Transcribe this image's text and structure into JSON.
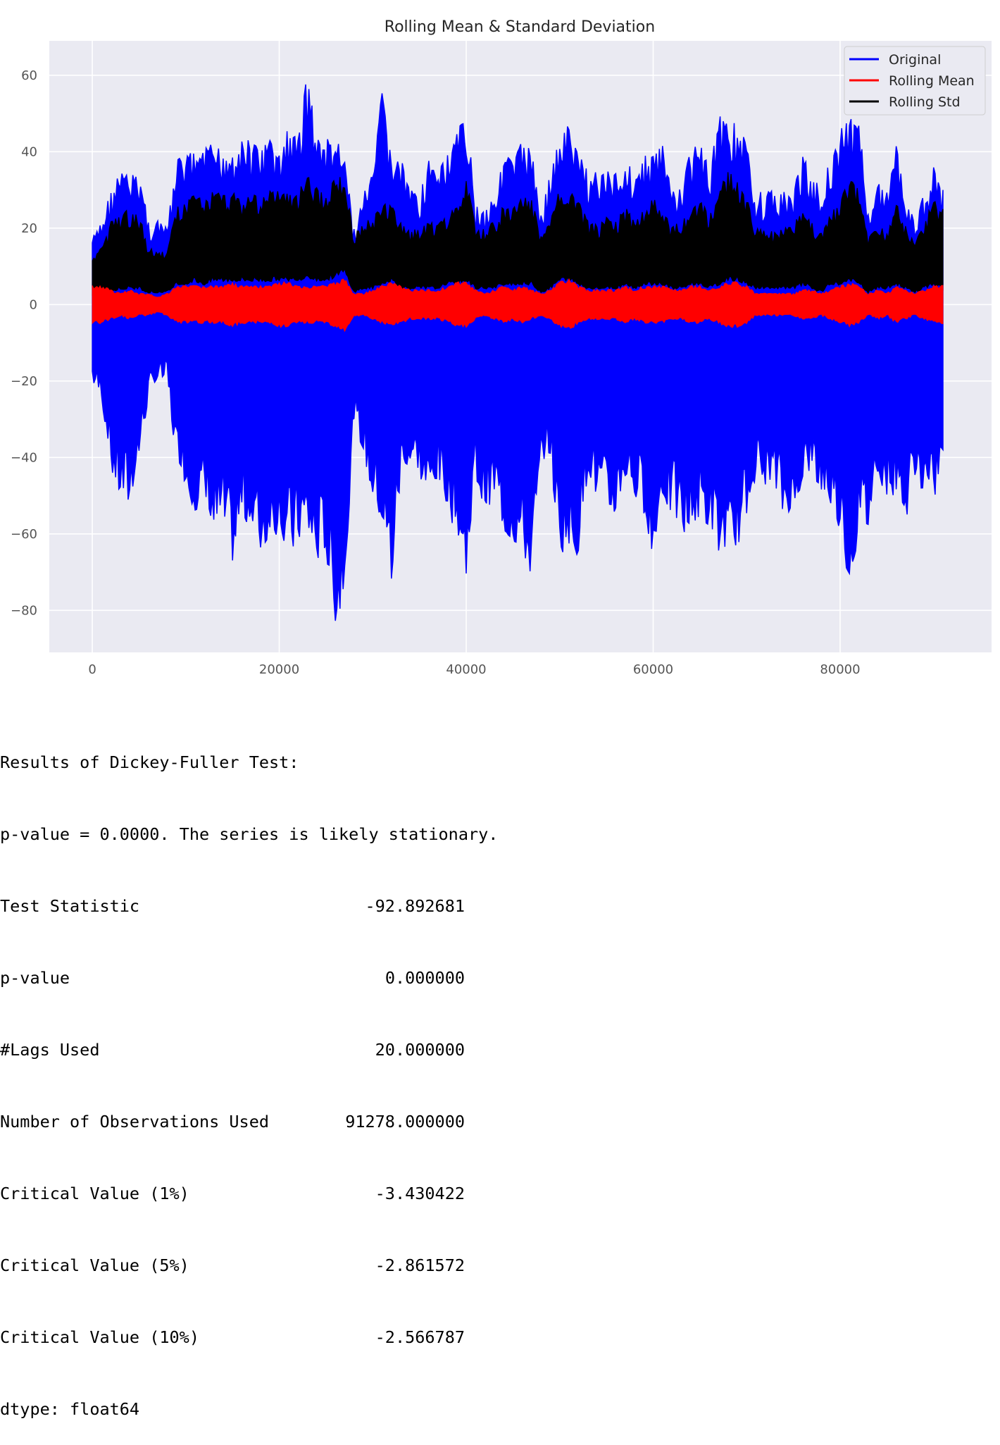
{
  "chart_data": {
    "type": "line",
    "title": "Rolling Mean & Standard Deviation",
    "xlim": [
      -4600,
      96200
    ],
    "ylim": [
      -91,
      69
    ],
    "x_ticks": [
      0,
      20000,
      40000,
      60000,
      80000
    ],
    "y_ticks": [
      -80,
      -60,
      -40,
      -20,
      0,
      20,
      40,
      60
    ],
    "x_tick_labels": [
      "0",
      "20000",
      "40000",
      "60000",
      "80000"
    ],
    "y_tick_labels": [
      "−80",
      "−60",
      "−40",
      "−20",
      "0",
      "20",
      "40",
      "60"
    ],
    "grid": true,
    "legend_position": "top-right",
    "x": [
      0,
      1000,
      2000,
      3000,
      4000,
      5000,
      6000,
      7000,
      8000,
      9000,
      10000,
      11000,
      12000,
      13000,
      14000,
      15000,
      16000,
      17000,
      18000,
      19000,
      20000,
      21000,
      22000,
      23000,
      24000,
      25000,
      26000,
      27000,
      28000,
      29000,
      30000,
      31000,
      32000,
      33000,
      34000,
      35000,
      36000,
      37000,
      38000,
      39000,
      40000,
      41000,
      42000,
      43000,
      44000,
      45000,
      46000,
      47000,
      48000,
      49000,
      50000,
      51000,
      52000,
      53000,
      54000,
      55000,
      56000,
      57000,
      58000,
      59000,
      60000,
      61000,
      62000,
      63000,
      64000,
      65000,
      66000,
      67000,
      68000,
      69000,
      70000,
      71000,
      72000,
      73000,
      74000,
      75000,
      76000,
      77000,
      78000,
      79000,
      80000,
      81000,
      82000,
      83000,
      84000,
      85000,
      86000,
      87000,
      88000,
      89000,
      90000,
      91000
    ],
    "series": [
      {
        "name": "Original",
        "color": "#0000ff",
        "upper": [
          18,
          22,
          30,
          35,
          34,
          36,
          22,
          22,
          21,
          38,
          40,
          40,
          42,
          42,
          42,
          42,
          45,
          42,
          42,
          45,
          40,
          47,
          44,
          62,
          45,
          44,
          44,
          40,
          20,
          30,
          35,
          57,
          40,
          38,
          32,
          30,
          38,
          35,
          40,
          45,
          53,
          26,
          25,
          30,
          40,
          38,
          45,
          40,
          25,
          35,
          45,
          47,
          40,
          35,
          35,
          35,
          35,
          40,
          35,
          40,
          40,
          42,
          30,
          32,
          40,
          44,
          36,
          50,
          48,
          48,
          42,
          30,
          30,
          30,
          30,
          30,
          40,
          35,
          30,
          40,
          46,
          50,
          47,
          28,
          32,
          30,
          46,
          30,
          22,
          30,
          36,
          30
        ],
        "lower": [
          -20,
          -25,
          -43,
          -50,
          -52,
          -40,
          -25,
          -20,
          -20,
          -42,
          -48,
          -56,
          -52,
          -60,
          -58,
          -70,
          -55,
          -60,
          -64,
          -62,
          -60,
          -65,
          -62,
          -60,
          -68,
          -66,
          -84,
          -76,
          -32,
          -40,
          -50,
          -58,
          -73,
          -45,
          -42,
          -45,
          -52,
          -45,
          -55,
          -60,
          -73,
          -45,
          -55,
          -50,
          -60,
          -62,
          -65,
          -73,
          -45,
          -40,
          -66,
          -65,
          -66,
          -45,
          -50,
          -55,
          -55,
          -45,
          -50,
          -55,
          -69,
          -50,
          -55,
          -60,
          -60,
          -55,
          -60,
          -65,
          -69,
          -67,
          -55,
          -45,
          -50,
          -48,
          -55,
          -58,
          -45,
          -45,
          -49,
          -52,
          -60,
          -74,
          -60,
          -58,
          -45,
          -50,
          -50,
          -58,
          -45,
          -50,
          -54,
          -38
        ],
        "mean_band": [
          5,
          5,
          4,
          3,
          4,
          3,
          3,
          2,
          3,
          5,
          5,
          5,
          5,
          5,
          5,
          6,
          5,
          5,
          5,
          5,
          6,
          6,
          5,
          5,
          5,
          5,
          6,
          7,
          3,
          3,
          4,
          5,
          6,
          5,
          4,
          4,
          4,
          4,
          5,
          6,
          6,
          4,
          3,
          4,
          5,
          4,
          5,
          4,
          3,
          4,
          6,
          7,
          5,
          4,
          4,
          4,
          4,
          5,
          4,
          5,
          5,
          5,
          4,
          4,
          5,
          5,
          4,
          5,
          6,
          6,
          5,
          3,
          3,
          3,
          3,
          3,
          4,
          4,
          3,
          4,
          5,
          6,
          5,
          3,
          4,
          3,
          5,
          4,
          3,
          4,
          5,
          5
        ]
      },
      {
        "name": "Rolling Mean",
        "color": "#ff0000"
      },
      {
        "name": "Rolling Std",
        "color": "#000000",
        "upper": [
          12,
          15,
          22,
          24,
          25,
          24,
          15,
          14,
          14,
          26,
          28,
          29,
          28,
          30,
          29,
          30,
          28,
          29,
          29,
          30,
          30,
          29,
          30,
          34,
          31,
          30,
          35,
          33,
          18,
          22,
          23,
          26,
          27,
          22,
          20,
          20,
          22,
          21,
          24,
          26,
          34,
          20,
          20,
          22,
          26,
          25,
          29,
          28,
          18,
          22,
          31,
          30,
          28,
          22,
          21,
          23,
          22,
          26,
          22,
          26,
          28,
          25,
          21,
          22,
          26,
          28,
          24,
          30,
          35,
          34,
          28,
          20,
          20,
          19,
          20,
          21,
          25,
          22,
          19,
          24,
          27,
          34,
          30,
          18,
          20,
          20,
          28,
          21,
          16,
          22,
          28,
          25
        ],
        "lower": [
          2,
          3,
          3,
          4,
          4,
          4,
          3,
          3,
          3,
          5,
          5,
          6,
          5,
          6,
          6,
          6,
          6,
          6,
          6,
          6,
          6,
          6,
          6,
          7,
          6,
          6,
          7,
          8,
          3,
          4,
          4,
          5,
          6,
          4,
          4,
          4,
          4,
          4,
          5,
          5,
          6,
          4,
          4,
          4,
          5,
          5,
          5,
          5,
          3,
          4,
          6,
          6,
          5,
          4,
          4,
          4,
          4,
          5,
          4,
          5,
          5,
          5,
          4,
          4,
          5,
          5,
          4,
          5,
          6,
          6,
          5,
          4,
          4,
          4,
          4,
          4,
          5,
          4,
          3,
          5,
          5,
          6,
          5,
          3,
          4,
          4,
          5,
          4,
          3,
          4,
          5,
          4
        ]
      }
    ]
  },
  "output": {
    "header": "Results of Dickey-Fuller Test:",
    "conclusion": "p-value = 0.0000. The series is likely stationary.",
    "rows": [
      {
        "label": "Test Statistic",
        "value": "-92.892681"
      },
      {
        "label": "p-value",
        "value": "0.000000"
      },
      {
        "label": "#Lags Used",
        "value": "20.000000"
      },
      {
        "label": "Number of Observations Used",
        "value": "91278.000000"
      },
      {
        "label": "Critical Value (1%)",
        "value": "-3.430422"
      },
      {
        "label": "Critical Value (5%)",
        "value": "-2.861572"
      },
      {
        "label": "Critical Value (10%)",
        "value": "-2.566787"
      }
    ],
    "dtype": "dtype: float64"
  }
}
